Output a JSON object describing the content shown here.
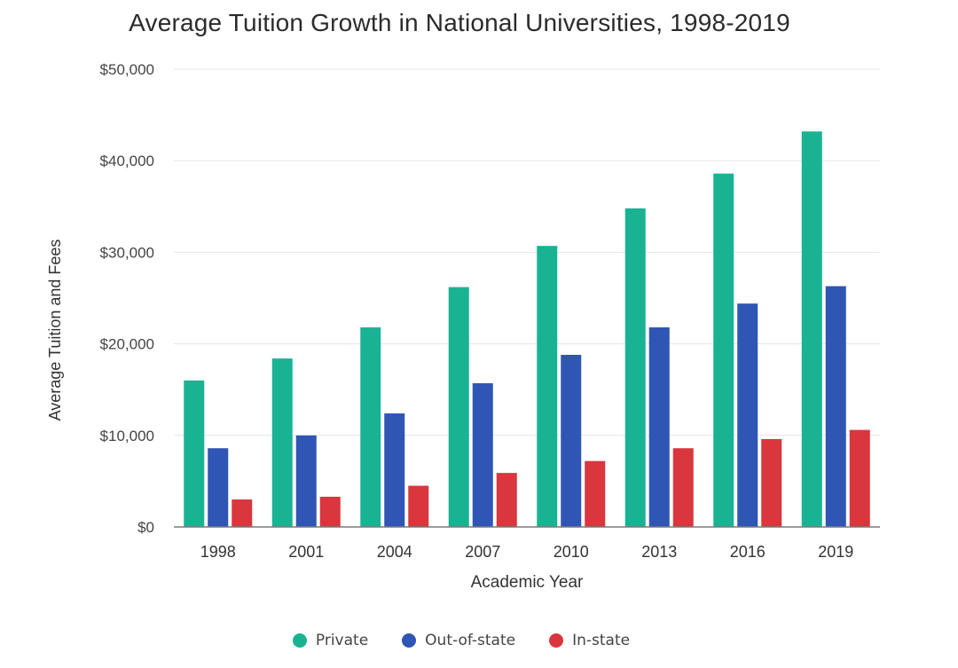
{
  "chart_data": {
    "type": "bar",
    "title": "Average Tuition Growth in National Universities, 1998-2019",
    "xlabel": "Academic Year",
    "ylabel": "Average Tuition and Fees",
    "categories": [
      "1998",
      "2001",
      "2004",
      "2007",
      "2010",
      "2013",
      "2016",
      "2019"
    ],
    "ylim": [
      0,
      50000
    ],
    "yticks": [
      0,
      10000,
      20000,
      30000,
      40000,
      50000
    ],
    "ytick_labels": [
      "$0",
      "$10,000",
      "$20,000",
      "$30,000",
      "$40,000",
      "$50,000"
    ],
    "grid": true,
    "legend_position": "bottom",
    "series": [
      {
        "name": "Private",
        "color": "#19b394",
        "values": [
          16000,
          18400,
          21800,
          26200,
          30700,
          34800,
          38600,
          43200
        ]
      },
      {
        "name": "Out-of-state",
        "color": "#2f55b5",
        "values": [
          8600,
          10000,
          12400,
          15700,
          18800,
          21800,
          24400,
          26300
        ]
      },
      {
        "name": "In-state",
        "color": "#d9363e",
        "values": [
          3000,
          3300,
          4500,
          5900,
          7200,
          8600,
          9600,
          10600
        ]
      }
    ]
  }
}
